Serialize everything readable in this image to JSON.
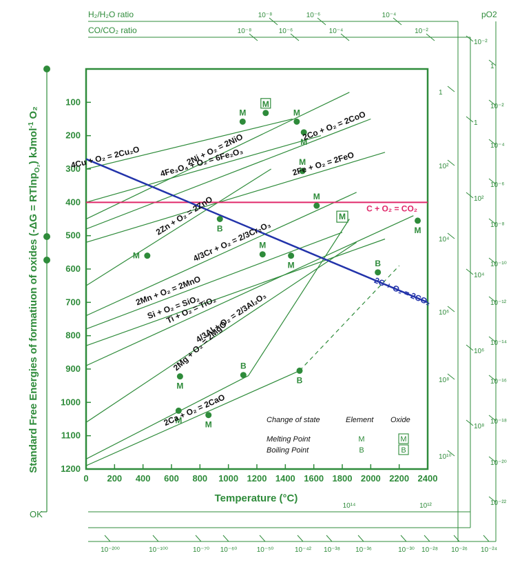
{
  "chart_data": {
    "type": "line",
    "title": "",
    "xlabel": "Temperature (°C)",
    "ylabel_main": "Standard Free Energies of formatiuon of oxides (-ΔG = RTlnp",
    "ylabel_sub": "O₂",
    "ylabel_tail": ") kJmol",
    "ylabel_sup": "-1",
    "ylabel_end": " O₂",
    "ylabel_ok": "OK",
    "xlim": [
      0,
      2400
    ],
    "ylim": [
      0,
      1200
    ],
    "x_ticks": [
      "0",
      "200",
      "400",
      "600",
      "800",
      "1000",
      "1200",
      "1400",
      "1600",
      "1800",
      "2000",
      "2200",
      "2400"
    ],
    "y_ticks": [
      "100",
      "200",
      "300",
      "400",
      "500",
      "600",
      "700",
      "800",
      "900",
      "1000",
      "1100",
      "1200"
    ],
    "colors": {
      "green": "#2e8b3a",
      "blue": "#2233aa",
      "pink": "#e0286a"
    },
    "reactions": [
      {
        "label": "4Fe₃O₄ + O₂ = 6Fe₂O₃",
        "points": [
          [
            0,
            400
          ],
          [
            1650,
            200
          ]
        ]
      },
      {
        "label": "4Cu + O₂ = 2Cu₂O",
        "points": [
          [
            0,
            300
          ],
          [
            1450,
            150
          ]
        ]
      },
      {
        "label": "2Ni + O₂ = 2NiO",
        "points": [
          [
            0,
            450
          ],
          [
            1850,
            70
          ]
        ]
      },
      {
        "label": "2Co + O₂ = 2CoO",
        "points": [
          [
            0,
            480
          ],
          [
            2000,
            150
          ]
        ]
      },
      {
        "label": "2Fe + O₂ = 2FeO",
        "points": [
          [
            0,
            520
          ],
          [
            2100,
            250
          ]
        ]
      },
      {
        "label": "2Zn + O₂ = 2ZnO",
        "points": [
          [
            0,
            650
          ],
          [
            1300,
            300
          ]
        ]
      },
      {
        "label": "4/3Cr + O₂ = 2/3Cr₂O₃",
        "points": [
          [
            0,
            740
          ],
          [
            1900,
            370
          ]
        ]
      },
      {
        "label": "2Mn + O₂ = 2MnO",
        "points": [
          [
            0,
            780
          ],
          [
            1800,
            490
          ]
        ]
      },
      {
        "label": "Si + O₂ = SiO₂",
        "points": [
          [
            0,
            830
          ],
          [
            2100,
            510
          ]
        ]
      },
      {
        "label": "Ti + O₂ = TiO₂",
        "points": [
          [
            0,
            890
          ],
          [
            2300,
            440
          ]
        ]
      },
      {
        "label": "4/3Al + O₂ = 2/3Al₂O₃",
        "points": [
          [
            0,
            1060
          ],
          [
            1900,
            520
          ]
        ]
      },
      {
        "label": "2Mg + O₂ = 2MgO",
        "points": [
          [
            0,
            1170
          ],
          [
            1140,
            920
          ],
          [
            1850,
            450
          ]
        ]
      },
      {
        "label": "2Ca + O₂ = 2CaO",
        "points": [
          [
            0,
            1190
          ],
          [
            1500,
            905
          ]
        ]
      }
    ],
    "co2_line": {
      "label": "2C + O₂ = 2CO₂",
      "points": [
        [
          0,
          270
        ],
        [
          2400,
          700
        ]
      ]
    },
    "co_line": {
      "label": "C + O₂ = CO₂",
      "points": [
        [
          0,
          400
        ],
        [
          2400,
          400
        ]
      ]
    },
    "dashed_extension": {
      "points": [
        [
          1500,
          905
        ],
        [
          2200,
          590
        ]
      ]
    },
    "markers": [
      {
        "x": 1100,
        "y": 158,
        "label": "M",
        "label_pos": "above",
        "boxed": false
      },
      {
        "x": 1262,
        "y": 132,
        "label": "M",
        "label_pos": "above",
        "boxed": true
      },
      {
        "x": 1480,
        "y": 158,
        "label": "M",
        "label_pos": "above",
        "boxed": false
      },
      {
        "x": 1530,
        "y": 190,
        "label": "M",
        "label_pos": "below",
        "boxed": false
      },
      {
        "x": 1520,
        "y": 306,
        "label": "M",
        "label_pos": "above",
        "boxed": false
      },
      {
        "x": 1620,
        "y": 410,
        "label": "M",
        "label_pos": "above",
        "boxed": false
      },
      {
        "x": 940,
        "y": 450,
        "label": "B",
        "label_pos": "below",
        "boxed": false
      },
      {
        "x": 430,
        "y": 560,
        "label": "M",
        "label_pos": "left",
        "boxed": false
      },
      {
        "x": 1240,
        "y": 556,
        "label": "M",
        "label_pos": "above",
        "boxed": false
      },
      {
        "x": 1440,
        "y": 560,
        "label": "M",
        "label_pos": "below",
        "boxed": false
      },
      {
        "x": 2330,
        "y": 455,
        "label": "M",
        "label_pos": "below",
        "boxed": false
      },
      {
        "x": 2050,
        "y": 610,
        "label": "B",
        "label_pos": "above",
        "boxed": false
      },
      {
        "x": 660,
        "y": 922,
        "label": "M",
        "label_pos": "below",
        "boxed": false
      },
      {
        "x": 1105,
        "y": 918,
        "label": "B",
        "label_pos": "above",
        "boxed": false
      },
      {
        "x": 1500,
        "y": 905,
        "label": "B",
        "label_pos": "below",
        "boxed": false
      },
      {
        "x": 650,
        "y": 1025,
        "label": "M",
        "label_pos": "below",
        "boxed": false
      },
      {
        "x": 860,
        "y": 1038,
        "label": "M",
        "label_pos": "below",
        "boxed": false
      }
    ],
    "boxed_oxide_marker": {
      "x": 1800,
      "y": 443,
      "label": "M"
    },
    "legend": {
      "header_change": "Change of state",
      "header_element": "Element",
      "header_oxide": "Oxide",
      "row1_label": "Melting Point",
      "row1_element": "M",
      "row1_oxide": "M",
      "row2_label": "Boiling Point",
      "row2_element": "B",
      "row2_oxide": "B"
    },
    "top_scales": {
      "h2_label": "H₂/H₂O ratio",
      "co_label": "CO/CO₂ ratio",
      "h2_ticks": [
        "10⁻⁸",
        "10⁻⁶",
        "10⁻⁴"
      ],
      "co_ticks": [
        "10⁻⁸",
        "10⁻⁶",
        "10⁻⁴",
        "10⁻²"
      ]
    },
    "right_scales": {
      "po2_label": "pO2",
      "po2_ticks": [
        "1",
        "10⁻²",
        "10⁻⁴",
        "10⁻⁶",
        "10⁻⁸",
        "10⁻¹⁰",
        "10⁻¹²",
        "10⁻¹⁴",
        "10⁻¹⁶",
        "10⁻¹⁸",
        "10⁻²⁰",
        "10⁻²²"
      ],
      "mid_ticks": [
        "10⁻²",
        "1",
        "10²",
        "10⁴",
        "10⁶",
        "10⁸"
      ],
      "inner_ticks": [
        "1",
        "10²",
        "10⁴",
        "10⁶",
        "10⁸",
        "10¹⁰"
      ]
    },
    "bottom_scales": {
      "row1_ticks": [
        "10¹⁴",
        "10¹²"
      ],
      "row2_ticks": [
        "10⁻²⁰⁰",
        "10⁻¹⁰⁰",
        "10⁻⁷⁰",
        "10⁻⁶⁰",
        "10⁻⁵⁰",
        "10⁻⁴²",
        "10⁻³⁸",
        "10⁻³⁶",
        "10⁻³⁰",
        "10⁻²⁸",
        "10⁻²⁶",
        "10⁻²⁴"
      ]
    }
  }
}
